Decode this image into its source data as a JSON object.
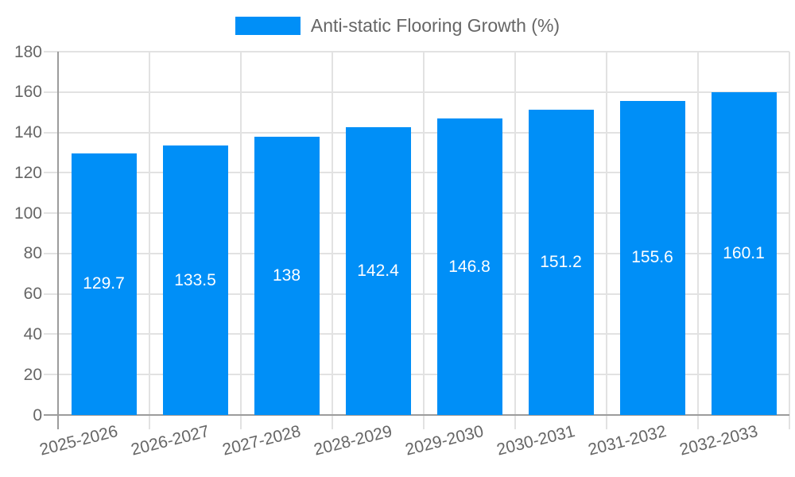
{
  "chart_data": {
    "type": "bar",
    "title": "",
    "legend": [
      "Anti-static Flooring Growth (%)"
    ],
    "legend_position": "top",
    "categories": [
      "2025-2026",
      "2026-2027",
      "2027-2028",
      "2028-2029",
      "2029-2030",
      "2030-2031",
      "2031-2032",
      "2032-2033"
    ],
    "series": [
      {
        "name": "Anti-static Flooring Growth (%)",
        "values": [
          129.7,
          133.5,
          138,
          142.4,
          146.8,
          151.2,
          155.6,
          160.1
        ]
      }
    ],
    "value_labels": [
      "129.7",
      "133.5",
      "138",
      "142.4",
      "146.8",
      "151.2",
      "155.6",
      "160.1"
    ],
    "xlabel": "",
    "ylabel": "",
    "ylim": [
      0,
      180
    ],
    "yticks": [
      0,
      20,
      40,
      60,
      80,
      100,
      120,
      140,
      160,
      180
    ],
    "grid": true,
    "x_label_rotation_deg": -14,
    "colors": {
      "bar": "#008ff7",
      "value_label": "#ffffff",
      "axis_line": "#9c9c9c",
      "grid_line": "#e2e2e2",
      "tick_text": "#666666",
      "background": "#ffffff"
    }
  }
}
